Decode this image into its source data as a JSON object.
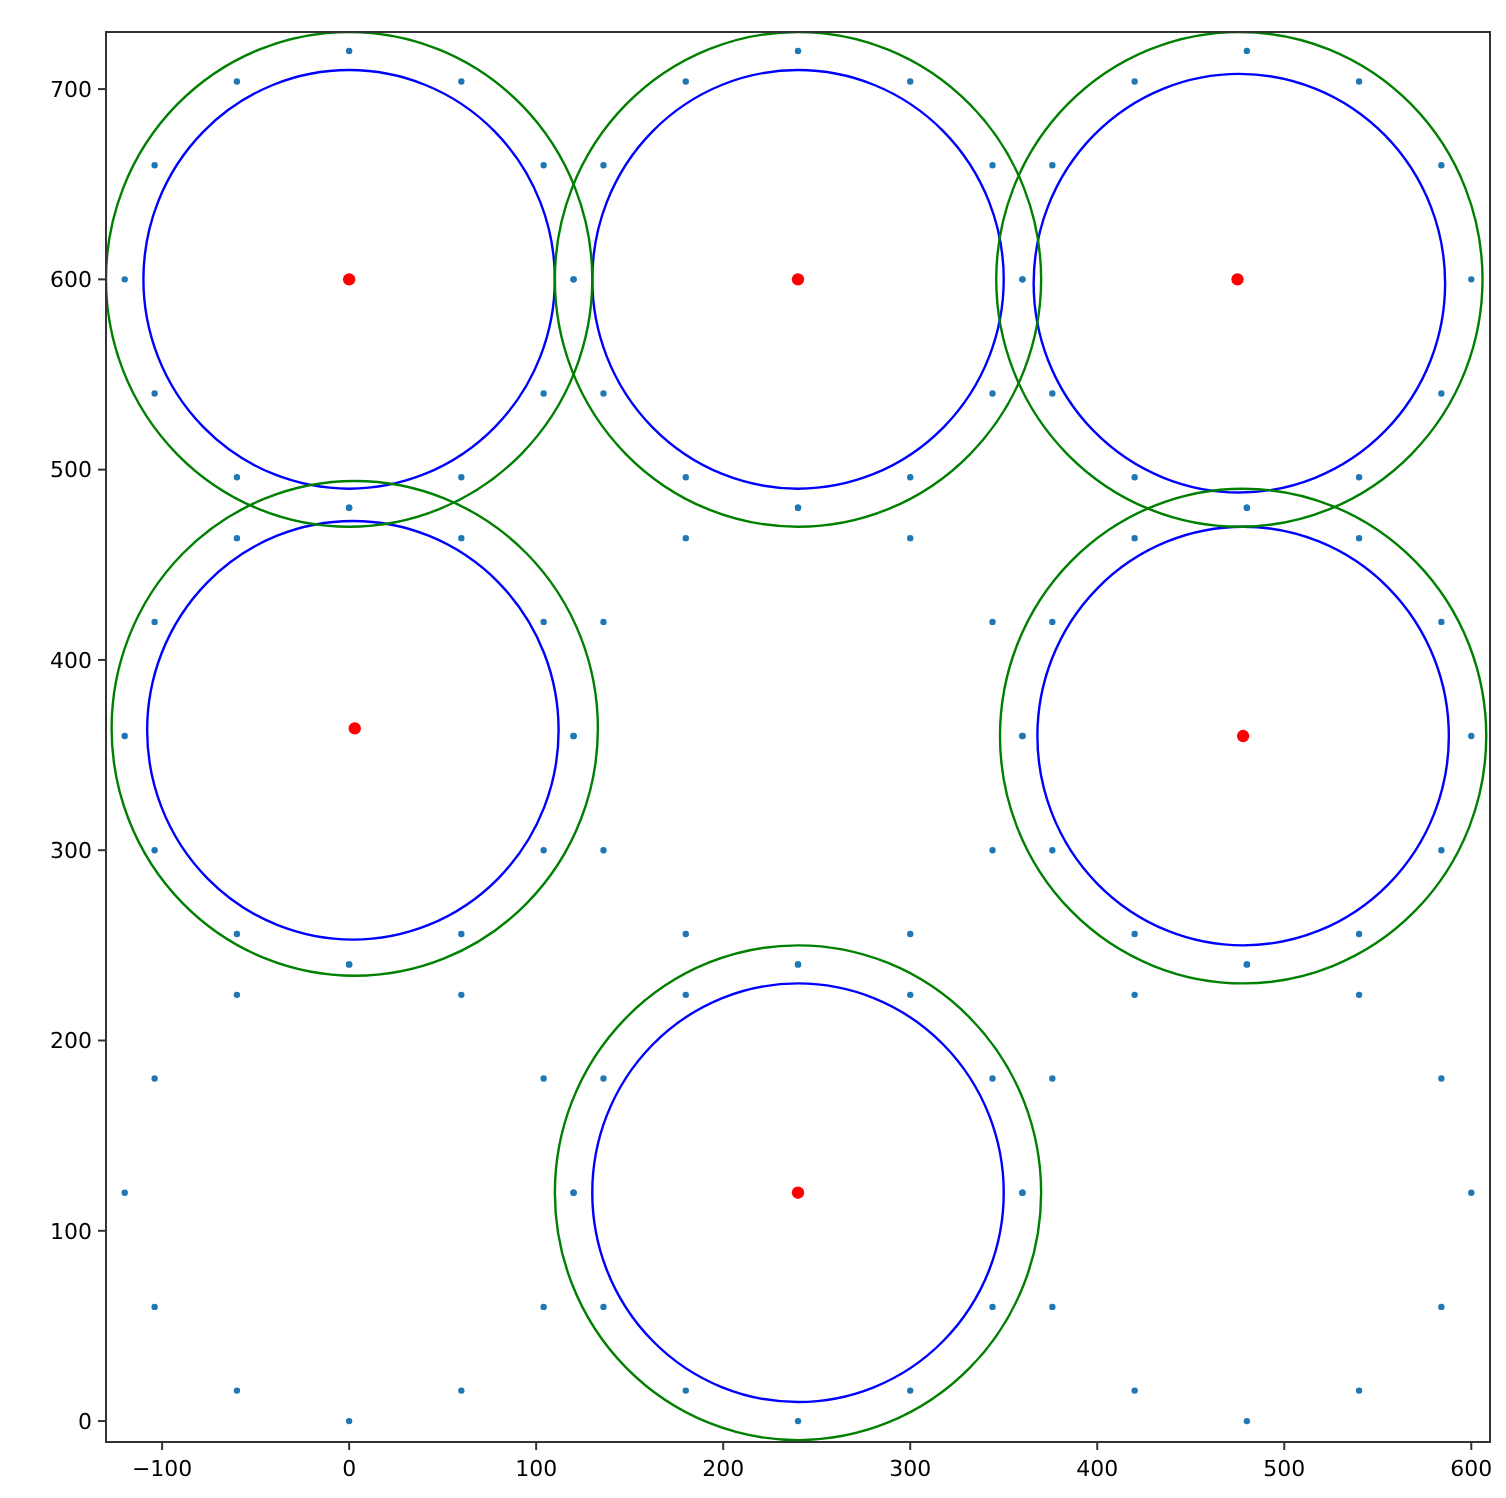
{
  "chart_data": {
    "type": "scatter",
    "xlim": [
      -130,
      610
    ],
    "ylim": [
      -11,
      730
    ],
    "xticks": [
      -100,
      0,
      100,
      200,
      300,
      400,
      500,
      600
    ],
    "yticks": [
      0,
      100,
      200,
      300,
      400,
      500,
      600,
      700
    ],
    "grid": false,
    "legend": false,
    "series": [
      {
        "type": "scatter",
        "color": "#1f77b4",
        "marker": "circle",
        "x": [
          120,
          104,
          60,
          0,
          -60,
          -104,
          -120,
          -104,
          -60,
          0,
          60,
          104,
          360,
          344,
          300,
          240,
          180,
          136,
          120,
          136,
          180,
          240,
          300,
          344,
          600,
          584,
          540,
          480,
          420,
          376,
          360,
          376,
          420,
          480,
          540,
          584,
          120,
          104,
          60,
          0,
          -60,
          -104,
          -120,
          -104,
          -60,
          0,
          60,
          104,
          360,
          344,
          300,
          240,
          180,
          136,
          120,
          136,
          180,
          240,
          300,
          344,
          600,
          584,
          540,
          480,
          420,
          376,
          360,
          376,
          420,
          480,
          540,
          584,
          120,
          104,
          60,
          0,
          -60,
          -104,
          -120,
          -104,
          -60,
          0,
          60,
          104,
          360,
          344,
          300,
          240,
          180,
          136,
          120,
          136,
          180,
          240,
          300,
          344,
          600,
          584,
          540,
          480,
          420,
          376,
          360,
          376,
          420,
          480,
          540,
          584
        ],
        "values": [
          600,
          660,
          704,
          720,
          704,
          660,
          600,
          540,
          496,
          480,
          496,
          540,
          600,
          660,
          704,
          720,
          704,
          660,
          600,
          540,
          496,
          480,
          496,
          540,
          600,
          660,
          704,
          720,
          704,
          660,
          600,
          540,
          496,
          480,
          496,
          540,
          360,
          420,
          464,
          480,
          464,
          420,
          360,
          300,
          256,
          240,
          256,
          300,
          360,
          420,
          464,
          480,
          464,
          420,
          360,
          300,
          256,
          240,
          256,
          300,
          360,
          420,
          464,
          480,
          464,
          420,
          360,
          300,
          256,
          240,
          256,
          300,
          120,
          180,
          224,
          240,
          224,
          180,
          120,
          60,
          16,
          0,
          16,
          60,
          120,
          180,
          224,
          240,
          224,
          180,
          120,
          60,
          16,
          0,
          16,
          60,
          120,
          180,
          224,
          240,
          224,
          180,
          120,
          60,
          16,
          0,
          16,
          60
        ]
      },
      {
        "type": "scatter",
        "color": "#ff0000",
        "marker": "circle",
        "x": [
          0,
          240,
          475,
          3,
          478,
          240
        ],
        "values": [
          600,
          600,
          600,
          364,
          360,
          120
        ]
      }
    ]
  }
}
